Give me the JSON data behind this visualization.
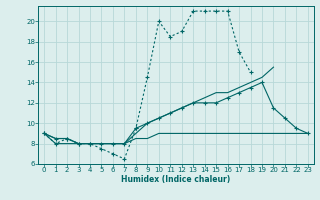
{
  "background_color": "#dceeed",
  "grid_color": "#b8d8d8",
  "line_color": "#006666",
  "xlabel": "Humidex (Indice chaleur)",
  "xlim": [
    -0.5,
    23.5
  ],
  "ylim": [
    6,
    21.5
  ],
  "yticks": [
    6,
    8,
    10,
    12,
    14,
    16,
    18,
    20
  ],
  "xticks": [
    0,
    1,
    2,
    3,
    4,
    5,
    6,
    7,
    8,
    9,
    10,
    11,
    12,
    13,
    14,
    15,
    16,
    17,
    18,
    19,
    20,
    21,
    22,
    23
  ],
  "series": [
    {
      "x": [
        0,
        1,
        2,
        3,
        4,
        5,
        6,
        7,
        8,
        9,
        10,
        11,
        12,
        13,
        14,
        15,
        16,
        17,
        18,
        19,
        20
      ],
      "y": [
        9,
        8,
        8.5,
        8,
        8,
        7.5,
        7,
        6.5,
        9.5,
        14.5,
        20,
        18.5,
        19,
        21,
        21,
        21,
        21,
        17,
        15,
        null,
        null
      ],
      "style": "dotted",
      "marker": true
    },
    {
      "x": [
        0,
        1,
        2,
        3,
        4,
        5,
        6,
        7,
        8,
        9,
        10,
        11,
        12,
        13,
        14,
        15,
        16,
        17,
        18,
        19,
        20
      ],
      "y": [
        9,
        8.5,
        8.5,
        8,
        8,
        8,
        8,
        8,
        9,
        10,
        10.5,
        11,
        11.5,
        12,
        12.5,
        13,
        13,
        13.5,
        14,
        14.5,
        15.5
      ],
      "style": "solid",
      "marker": false
    },
    {
      "x": [
        0,
        1,
        2,
        3,
        4,
        5,
        6,
        7,
        8,
        9,
        10,
        11,
        12,
        13,
        14,
        15,
        16,
        17,
        18,
        19,
        20,
        21,
        22,
        23
      ],
      "y": [
        9,
        8.5,
        8.5,
        8,
        8,
        8,
        8,
        8,
        9.5,
        10,
        10.5,
        11,
        11.5,
        12,
        12,
        12,
        12.5,
        13,
        13.5,
        14,
        11.5,
        10.5,
        9.5,
        9
      ],
      "style": "solid",
      "marker": true
    },
    {
      "x": [
        0,
        1,
        2,
        3,
        4,
        5,
        6,
        7,
        8,
        9,
        10,
        11,
        12,
        13,
        14,
        15,
        16,
        17,
        18,
        19,
        20,
        21,
        22,
        23
      ],
      "y": [
        9,
        8,
        8,
        8,
        8,
        8,
        8,
        8,
        8.5,
        8.5,
        9,
        9,
        9,
        9,
        9,
        9,
        9,
        9,
        9,
        9,
        9,
        9,
        9,
        9
      ],
      "style": "solid",
      "marker": false
    }
  ]
}
